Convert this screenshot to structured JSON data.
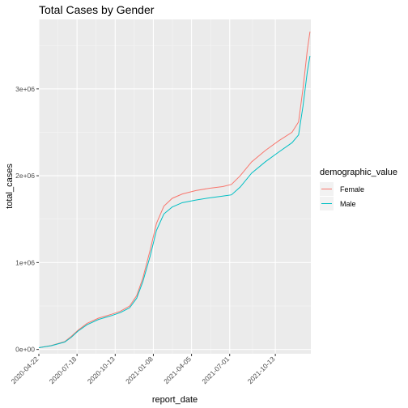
{
  "chart_data": {
    "type": "line",
    "title": "Total Cases by Gender",
    "xlabel": "report_date",
    "ylabel": "total_cases",
    "x_ticks": [
      "2020-04-22",
      "2020-07-18",
      "2020-10-13",
      "2021-01-08",
      "2021-04-05",
      "2021-07-01",
      "2021-10-13"
    ],
    "y_ticks": [
      {
        "value": 0,
        "label": "0e+00"
      },
      {
        "value": 1000000,
        "label": "1e+06"
      },
      {
        "value": 2000000,
        "label": "2e+06"
      },
      {
        "value": 3000000,
        "label": "3e+06"
      }
    ],
    "xlim": [
      "2020-04-22",
      "2022-01-02"
    ],
    "ylim": [
      -50000,
      3800000
    ],
    "grid": true,
    "legend": {
      "title": "demographic_value",
      "position": "right"
    },
    "series": [
      {
        "name": "Female",
        "color": "#f8766d",
        "points": [
          [
            "2020-04-22",
            20000
          ],
          [
            "2020-05-20",
            45000
          ],
          [
            "2020-06-20",
            90000
          ],
          [
            "2020-07-05",
            150000
          ],
          [
            "2020-07-20",
            220000
          ],
          [
            "2020-08-10",
            300000
          ],
          [
            "2020-09-05",
            360000
          ],
          [
            "2020-10-05",
            405000
          ],
          [
            "2020-10-25",
            440000
          ],
          [
            "2020-11-15",
            500000
          ],
          [
            "2020-12-01",
            620000
          ],
          [
            "2020-12-15",
            820000
          ],
          [
            "2021-01-01",
            1150000
          ],
          [
            "2021-01-15",
            1450000
          ],
          [
            "2021-02-01",
            1650000
          ],
          [
            "2021-02-20",
            1740000
          ],
          [
            "2021-03-15",
            1790000
          ],
          [
            "2021-04-15",
            1830000
          ],
          [
            "2021-05-15",
            1855000
          ],
          [
            "2021-06-15",
            1875000
          ],
          [
            "2021-07-05",
            1900000
          ],
          [
            "2021-07-25",
            2000000
          ],
          [
            "2021-08-20",
            2160000
          ],
          [
            "2021-09-20",
            2290000
          ],
          [
            "2021-10-20",
            2400000
          ],
          [
            "2021-11-20",
            2500000
          ],
          [
            "2021-12-05",
            2620000
          ],
          [
            "2021-12-15",
            3000000
          ],
          [
            "2021-12-25",
            3450000
          ],
          [
            "2021-12-31",
            3660000
          ]
        ]
      },
      {
        "name": "Male",
        "color": "#00bfc4",
        "points": [
          [
            "2020-04-22",
            20000
          ],
          [
            "2020-05-20",
            42000
          ],
          [
            "2020-06-20",
            85000
          ],
          [
            "2020-07-05",
            140000
          ],
          [
            "2020-07-20",
            210000
          ],
          [
            "2020-08-10",
            285000
          ],
          [
            "2020-09-05",
            345000
          ],
          [
            "2020-10-05",
            390000
          ],
          [
            "2020-10-25",
            425000
          ],
          [
            "2020-11-15",
            480000
          ],
          [
            "2020-12-01",
            590000
          ],
          [
            "2020-12-15",
            780000
          ],
          [
            "2021-01-01",
            1080000
          ],
          [
            "2021-01-15",
            1370000
          ],
          [
            "2021-02-01",
            1560000
          ],
          [
            "2021-02-20",
            1640000
          ],
          [
            "2021-03-15",
            1690000
          ],
          [
            "2021-04-15",
            1720000
          ],
          [
            "2021-05-15",
            1745000
          ],
          [
            "2021-06-15",
            1765000
          ],
          [
            "2021-07-05",
            1780000
          ],
          [
            "2021-07-25",
            1870000
          ],
          [
            "2021-08-20",
            2030000
          ],
          [
            "2021-09-20",
            2160000
          ],
          [
            "2021-10-20",
            2270000
          ],
          [
            "2021-11-20",
            2380000
          ],
          [
            "2021-12-05",
            2470000
          ],
          [
            "2021-12-15",
            2800000
          ],
          [
            "2021-12-25",
            3200000
          ],
          [
            "2021-12-31",
            3380000
          ]
        ]
      }
    ]
  }
}
